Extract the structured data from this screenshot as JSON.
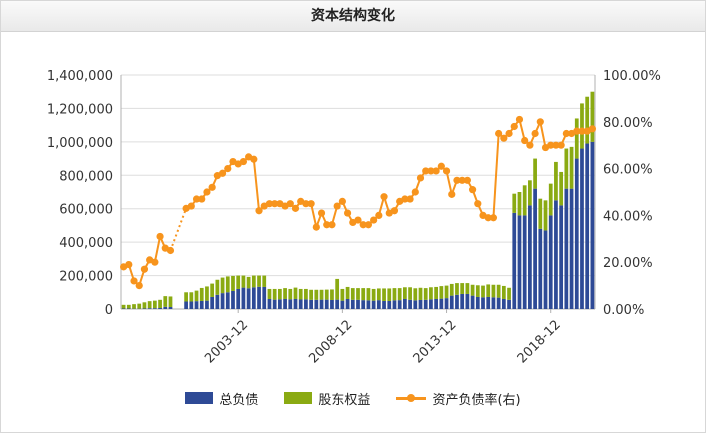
{
  "title": "资本结构变化",
  "legend": {
    "debt": "总负债",
    "equity": "股东权益",
    "ratio": "资产负债率(右)"
  },
  "colors": {
    "debt": "#2e4a96",
    "equity": "#8aaa12",
    "ratio": "#f7941d",
    "grid": "#dddddd"
  },
  "chart_data": {
    "type": "bar",
    "left_axis": {
      "min": 0,
      "max": 1400000,
      "ticks": [
        "0",
        "200,000",
        "400,000",
        "600,000",
        "800,000",
        "1,000,000",
        "1,200,000",
        "1,400,000"
      ]
    },
    "right_axis": {
      "min": 0,
      "max": 100,
      "ticks": [
        "0.00%",
        "20.00%",
        "40.00%",
        "60.00%",
        "80.00%",
        "100.00%"
      ]
    },
    "x_tick_labels": [
      {
        "label": "2003-12",
        "index": 22
      },
      {
        "label": "2008-12",
        "index": 42
      },
      {
        "label": "2013-12",
        "index": 62
      },
      {
        "label": "2018-12",
        "index": 82
      }
    ],
    "grid": true,
    "series": [
      {
        "name": "总负债",
        "type": "stacked-bar",
        "values": [
          3000,
          3000,
          2000,
          2000,
          3000,
          5000,
          5000,
          6000,
          13000,
          12000,
          0,
          0,
          45000,
          45000,
          47000,
          48000,
          50000,
          72000,
          85000,
          95000,
          100000,
          108000,
          120000,
          128000,
          124000,
          130000,
          133000,
          132000,
          60000,
          56000,
          58000,
          60000,
          58000,
          60000,
          57000,
          58000,
          55000,
          55000,
          56000,
          56000,
          54000,
          56000,
          50000,
          60000,
          55000,
          55000,
          53000,
          52000,
          50000,
          53000,
          48000,
          48000,
          52000,
          53000,
          60000,
          55000,
          52000,
          54000,
          55000,
          58000,
          60000,
          62000,
          65000,
          80000,
          85000,
          90000,
          90000,
          80000,
          72000,
          70000,
          72000,
          70000,
          68000,
          60000,
          55000,
          575000,
          560000,
          560000,
          620000,
          720000,
          480000,
          470000,
          560000,
          650000,
          620000,
          720000,
          720000,
          900000,
          960000,
          990000,
          1000000
        ]
      },
      {
        "name": "股东权益",
        "type": "stacked-bar",
        "values": [
          22000,
          22000,
          27000,
          30000,
          37000,
          42000,
          45000,
          49000,
          64000,
          63000,
          0,
          0,
          55000,
          55000,
          63000,
          78000,
          85000,
          80000,
          90000,
          93000,
          95000,
          90000,
          80000,
          72000,
          68000,
          70000,
          67000,
          68000,
          60000,
          64000,
          62000,
          65000,
          62000,
          68000,
          63000,
          62000,
          60000,
          60000,
          59000,
          60000,
          63000,
          124000,
          70000,
          72000,
          70000,
          70000,
          72000,
          73000,
          70000,
          70000,
          75000,
          75000,
          73000,
          72000,
          70000,
          75000,
          72000,
          73000,
          70000,
          72000,
          72000,
          75000,
          75000,
          70000,
          70000,
          65000,
          65000,
          65000,
          70000,
          70000,
          75000,
          75000,
          77000,
          78000,
          72000,
          115000,
          140000,
          180000,
          150000,
          180000,
          180000,
          180000,
          190000,
          230000,
          200000,
          240000,
          250000,
          240000,
          270000,
          280000,
          300000
        ]
      },
      {
        "name": "资产负债率(右)",
        "type": "line",
        "values": [
          18,
          19,
          12,
          10,
          17,
          21,
          20,
          31,
          26,
          25,
          null,
          null,
          43,
          44,
          47,
          47,
          50,
          52,
          57,
          58,
          60,
          63,
          62,
          63,
          65,
          64,
          42,
          44,
          45,
          45,
          45,
          44,
          45,
          43,
          46,
          45,
          45,
          35,
          41,
          36,
          36,
          44,
          46,
          41,
          37,
          38,
          36,
          36,
          38,
          40,
          48,
          41,
          42,
          46,
          47,
          47,
          50,
          56,
          59,
          59,
          59,
          61,
          59,
          49,
          55,
          55,
          55,
          51,
          45,
          40,
          39,
          39,
          75,
          73,
          75,
          78,
          81,
          72,
          70,
          75,
          80,
          69,
          70,
          70,
          70,
          75,
          75,
          76,
          76,
          76,
          77
        ]
      }
    ]
  }
}
